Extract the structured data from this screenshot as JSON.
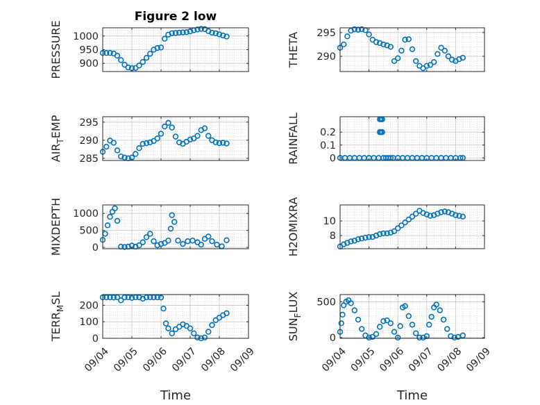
{
  "title": "Figure 2 low",
  "chart_data": [
    {
      "type": "scatter",
      "panel": "PRESSURE",
      "ylabel": "PRESSURE",
      "ylim": [
        870,
        1030
      ],
      "yticks": [
        900,
        950,
        1000
      ],
      "ytick_labels": [
        "900",
        "950",
        "1000"
      ],
      "x": [
        "09/04 00:00",
        "09/04 03:00",
        "09/04 06:00",
        "09/04 09:00",
        "09/04 12:00",
        "09/04 15:00",
        "09/04 18:00",
        "09/04 21:00",
        "09/05 00:00",
        "09/05 03:00",
        "09/05 06:00",
        "09/05 09:00",
        "09/05 12:00",
        "09/05 15:00",
        "09/05 18:00",
        "09/05 21:00",
        "09/06 00:00",
        "09/06 03:00",
        "09/06 06:00",
        "09/06 09:00",
        "09/06 12:00",
        "09/06 15:00",
        "09/06 18:00",
        "09/06 21:00",
        "09/07 00:00",
        "09/07 03:00",
        "09/07 06:00",
        "09/07 09:00",
        "09/07 12:00",
        "09/07 15:00",
        "09/07 18:00",
        "09/07 21:00",
        "09/08 00:00",
        "09/08 03:00",
        "09/08 06:00"
      ],
      "y": [
        938,
        938,
        938,
        936,
        928,
        912,
        895,
        885,
        882,
        883,
        892,
        905,
        920,
        935,
        950,
        956,
        958,
        990,
        1005,
        1010,
        1011,
        1012,
        1013,
        1014,
        1017,
        1021,
        1024,
        1026,
        1025,
        1018,
        1012,
        1010,
        1006,
        1002,
        998
      ]
    },
    {
      "type": "scatter",
      "panel": "THETA",
      "ylabel": "THETA",
      "ylim": [
        286.8,
        296
      ],
      "yticks": [
        290,
        295
      ],
      "ytick_labels": [
        "290",
        "295"
      ],
      "x": [
        "09/04 00:00",
        "09/04 03:00",
        "09/04 06:00",
        "09/04 09:00",
        "09/04 12:00",
        "09/04 15:00",
        "09/04 18:00",
        "09/04 21:00",
        "09/05 00:00",
        "09/05 03:00",
        "09/05 06:00",
        "09/05 09:00",
        "09/05 12:00",
        "09/05 15:00",
        "09/05 18:00",
        "09/05 21:00",
        "09/06 00:00",
        "09/06 03:00",
        "09/06 06:00",
        "09/06 09:00",
        "09/06 12:00",
        "09/06 15:00",
        "09/06 18:00",
        "09/06 21:00",
        "09/07 00:00",
        "09/07 03:00",
        "09/07 06:00",
        "09/07 09:00",
        "09/07 12:00",
        "09/07 15:00",
        "09/07 18:00",
        "09/07 21:00",
        "09/08 00:00",
        "09/08 03:00",
        "09/08 06:00"
      ],
      "y": [
        291.8,
        292.5,
        294.2,
        295.4,
        295.7,
        295.6,
        295.7,
        295.5,
        294.6,
        293.5,
        293.0,
        292.8,
        292.5,
        292.3,
        292.0,
        289.0,
        289.6,
        291.2,
        293.5,
        293.6,
        291.5,
        289.0,
        288.0,
        287.5,
        288.0,
        288.2,
        288.8,
        290.5,
        291.8,
        291.2,
        290.0,
        289.3,
        289.0,
        289.4,
        289.7
      ]
    },
    {
      "type": "scatter",
      "panel": "AIR_TEMP",
      "ylabel": "AIR_TEMP",
      "ylim": [
        284.4,
        296.5
      ],
      "yticks": [
        285,
        290,
        295
      ],
      "ytick_labels": [
        "285",
        "290",
        "295"
      ],
      "x": [
        "09/04 00:00",
        "09/04 03:00",
        "09/04 06:00",
        "09/04 09:00",
        "09/04 12:00",
        "09/04 15:00",
        "09/04 18:00",
        "09/04 21:00",
        "09/05 00:00",
        "09/05 03:00",
        "09/05 06:00",
        "09/05 09:00",
        "09/05 12:00",
        "09/05 15:00",
        "09/05 18:00",
        "09/05 21:00",
        "09/06 00:00",
        "09/06 03:00",
        "09/06 06:00",
        "09/06 09:00",
        "09/06 12:00",
        "09/06 15:00",
        "09/06 18:00",
        "09/06 21:00",
        "09/07 00:00",
        "09/07 03:00",
        "09/07 06:00",
        "09/07 09:00",
        "09/07 12:00",
        "09/07 15:00",
        "09/07 18:00",
        "09/07 21:00",
        "09/08 00:00",
        "09/08 03:00",
        "09/08 06:00"
      ],
      "y": [
        286.8,
        288.2,
        289.9,
        289.3,
        287.2,
        285.5,
        285.2,
        285.0,
        285.2,
        286.2,
        287.8,
        289.0,
        289.2,
        289.4,
        289.8,
        290.5,
        291.8,
        293.8,
        294.8,
        293.5,
        291.0,
        289.4,
        289.0,
        289.6,
        290.2,
        290.5,
        291.2,
        292.8,
        293.3,
        291.2,
        290.0,
        289.4,
        289.2,
        289.3,
        289.1
      ]
    },
    {
      "type": "scatter",
      "panel": "RAINFALL",
      "ylabel": "RAINFALL",
      "ylim": [
        -0.02,
        0.32
      ],
      "yticks": [
        0,
        0.1,
        0.2
      ],
      "ytick_labels": [
        "0",
        "0.1",
        "0.2"
      ],
      "x": [
        "09/04 00:00",
        "09/04 04:00",
        "09/04 08:00",
        "09/04 12:00",
        "09/04 16:00",
        "09/04 20:00",
        "09/05 00:00",
        "09/05 04:00",
        "09/05 08:00",
        "09/05 12:00",
        "09/05 14:00",
        "09/05 16:00",
        "09/05 18:00",
        "09/05 20:00",
        "09/06 00:00",
        "09/06 04:00",
        "09/06 08:00",
        "09/06 12:00",
        "09/06 16:00",
        "09/06 20:00",
        "09/07 00:00",
        "09/07 04:00",
        "09/07 08:00",
        "09/07 12:00",
        "09/07 16:00",
        "09/07 20:00",
        "09/08 00:00",
        "09/08 04:00",
        "09/08 06:00",
        "09/05 09:00",
        "09/05 10:00",
        "09/05 11:00",
        "09/05 09:00",
        "09/05 10:00",
        "09/05 11:00"
      ],
      "y": [
        0,
        0,
        0,
        0,
        0,
        0,
        0,
        0,
        0,
        0,
        0,
        0,
        0,
        0,
        0,
        0,
        0,
        0,
        0,
        0,
        0,
        0,
        0,
        0,
        0,
        0,
        0,
        0,
        0,
        0.2,
        0.2,
        0.2,
        0.3,
        0.3,
        0.3
      ]
    },
    {
      "type": "scatter",
      "panel": "MIXDEPTH",
      "ylabel": "MIXDEPTH",
      "ylim": [
        -40,
        1250
      ],
      "yticks": [
        0,
        500,
        1000
      ],
      "ytick_labels": [
        "0",
        "500",
        "1000"
      ],
      "x": [
        "09/04 00:00",
        "09/04 02:00",
        "09/04 04:00",
        "09/04 06:00",
        "09/04 08:00",
        "09/04 10:00",
        "09/04 12:00",
        "09/04 15:00",
        "09/04 18:00",
        "09/04 21:00",
        "09/05 00:00",
        "09/05 03:00",
        "09/05 06:00",
        "09/05 09:00",
        "09/05 12:00",
        "09/05 15:00",
        "09/05 18:00",
        "09/05 21:00",
        "09/06 00:00",
        "09/06 03:00",
        "09/06 06:00",
        "09/06 08:00",
        "09/06 09:00",
        "09/06 11:00",
        "09/06 14:00",
        "09/06 18:00",
        "09/06 22:00",
        "09/07 02:00",
        "09/07 06:00",
        "09/07 09:00",
        "09/07 12:00",
        "09/07 15:00",
        "09/07 18:00",
        "09/07 22:00",
        "09/08 02:00",
        "09/08 06:00"
      ],
      "y": [
        220,
        400,
        650,
        900,
        1050,
        1150,
        780,
        20,
        10,
        20,
        50,
        20,
        60,
        150,
        300,
        400,
        180,
        60,
        100,
        130,
        200,
        550,
        950,
        750,
        200,
        100,
        180,
        200,
        150,
        80,
        250,
        320,
        180,
        80,
        30,
        210
      ]
    },
    {
      "type": "scatter",
      "panel": "H2OMIXRA",
      "ylabel": "H2OMIXRA",
      "ylim": [
        6.2,
        12.2
      ],
      "yticks": [
        8,
        10
      ],
      "ytick_labels": [
        "8",
        "10"
      ],
      "x": [
        "09/04 00:00",
        "09/04 03:00",
        "09/04 06:00",
        "09/04 09:00",
        "09/04 12:00",
        "09/04 15:00",
        "09/04 18:00",
        "09/04 21:00",
        "09/05 00:00",
        "09/05 03:00",
        "09/05 06:00",
        "09/05 09:00",
        "09/05 12:00",
        "09/05 15:00",
        "09/05 18:00",
        "09/05 21:00",
        "09/06 00:00",
        "09/06 03:00",
        "09/06 06:00",
        "09/06 09:00",
        "09/06 12:00",
        "09/06 15:00",
        "09/06 18:00",
        "09/06 21:00",
        "09/07 00:00",
        "09/07 03:00",
        "09/07 06:00",
        "09/07 09:00",
        "09/07 12:00",
        "09/07 15:00",
        "09/07 18:00",
        "09/07 21:00",
        "09/08 00:00",
        "09/08 03:00",
        "09/08 06:00"
      ],
      "y": [
        6.5,
        6.8,
        7.0,
        7.2,
        7.3,
        7.5,
        7.6,
        7.7,
        7.8,
        7.8,
        8.0,
        8.2,
        8.3,
        8.3,
        8.4,
        8.6,
        9.0,
        9.4,
        9.8,
        10.2,
        10.6,
        11.0,
        11.4,
        11.1,
        10.9,
        10.7,
        10.8,
        11.0,
        11.2,
        11.3,
        11.2,
        11.0,
        10.8,
        10.7,
        10.6
      ]
    },
    {
      "type": "scatter",
      "panel": "TERR_MSL",
      "ylabel": "TERR_MSL",
      "ylim": [
        0,
        265
      ],
      "yticks": [
        0,
        100,
        200
      ],
      "ytick_labels": [
        "0",
        "100",
        "200"
      ],
      "x": [
        "09/04 00:00",
        "09/04 03:00",
        "09/04 06:00",
        "09/04 09:00",
        "09/04 12:00",
        "09/04 15:00",
        "09/04 18:00",
        "09/04 21:00",
        "09/05 00:00",
        "09/05 03:00",
        "09/05 06:00",
        "09/05 09:00",
        "09/05 12:00",
        "09/05 15:00",
        "09/05 18:00",
        "09/05 21:00",
        "09/06 00:00",
        "09/06 02:00",
        "09/06 04:00",
        "09/06 06:00",
        "09/06 09:00",
        "09/06 12:00",
        "09/06 15:00",
        "09/06 18:00",
        "09/06 21:00",
        "09/07 00:00",
        "09/07 03:00",
        "09/07 06:00",
        "09/07 09:00",
        "09/07 12:00",
        "09/07 15:00",
        "09/07 18:00",
        "09/07 21:00",
        "09/08 00:00",
        "09/08 03:00",
        "09/08 06:00"
      ],
      "y": [
        248,
        248,
        248,
        247,
        248,
        230,
        248,
        248,
        245,
        248,
        248,
        240,
        248,
        248,
        248,
        248,
        247,
        180,
        90,
        60,
        30,
        55,
        70,
        85,
        75,
        60,
        30,
        5,
        0,
        5,
        40,
        80,
        110,
        125,
        140,
        152
      ]
    },
    {
      "type": "scatter",
      "panel": "SUN_FLUX",
      "ylabel": "SUN_FLUX",
      "ylim": [
        -10,
        600
      ],
      "yticks": [
        0,
        500
      ],
      "ytick_labels": [
        "0",
        "500"
      ],
      "x": [
        "09/04 00:00",
        "09/04 01:00",
        "09/04 02:00",
        "09/04 03:00",
        "09/04 05:00",
        "09/04 07:00",
        "09/04 09:00",
        "09/04 12:00",
        "09/04 15:00",
        "09/04 18:00",
        "09/04 21:00",
        "09/05 00:00",
        "09/05 03:00",
        "09/05 06:00",
        "09/05 09:00",
        "09/05 12:00",
        "09/05 15:00",
        "09/05 18:00",
        "09/05 21:00",
        "09/06 00:00",
        "09/06 02:00",
        "09/06 04:00",
        "09/06 06:00",
        "09/06 09:00",
        "09/06 12:00",
        "09/06 15:00",
        "09/06 18:00",
        "09/06 21:00",
        "09/07 00:00",
        "09/07 02:00",
        "09/07 04:00",
        "09/07 06:00",
        "09/07 08:00",
        "09/07 11:00",
        "09/07 14:00",
        "09/07 17:00",
        "09/07 20:00",
        "09/07 23:00",
        "09/08 02:00",
        "09/08 06:00"
      ],
      "y": [
        80,
        200,
        320,
        450,
        500,
        520,
        480,
        380,
        250,
        120,
        30,
        0,
        10,
        50,
        150,
        230,
        240,
        200,
        80,
        0,
        160,
        420,
        440,
        300,
        180,
        60,
        0,
        0,
        20,
        180,
        290,
        420,
        460,
        380,
        250,
        120,
        20,
        0,
        10,
        30
      ]
    }
  ],
  "xlim": [
    "09/04",
    "09/09"
  ],
  "xtick_labels": [
    "09/04",
    "09/05",
    "09/06",
    "09/07",
    "09/08",
    "09/09"
  ],
  "xlabel": "Time",
  "marker_color": "#0072bd"
}
